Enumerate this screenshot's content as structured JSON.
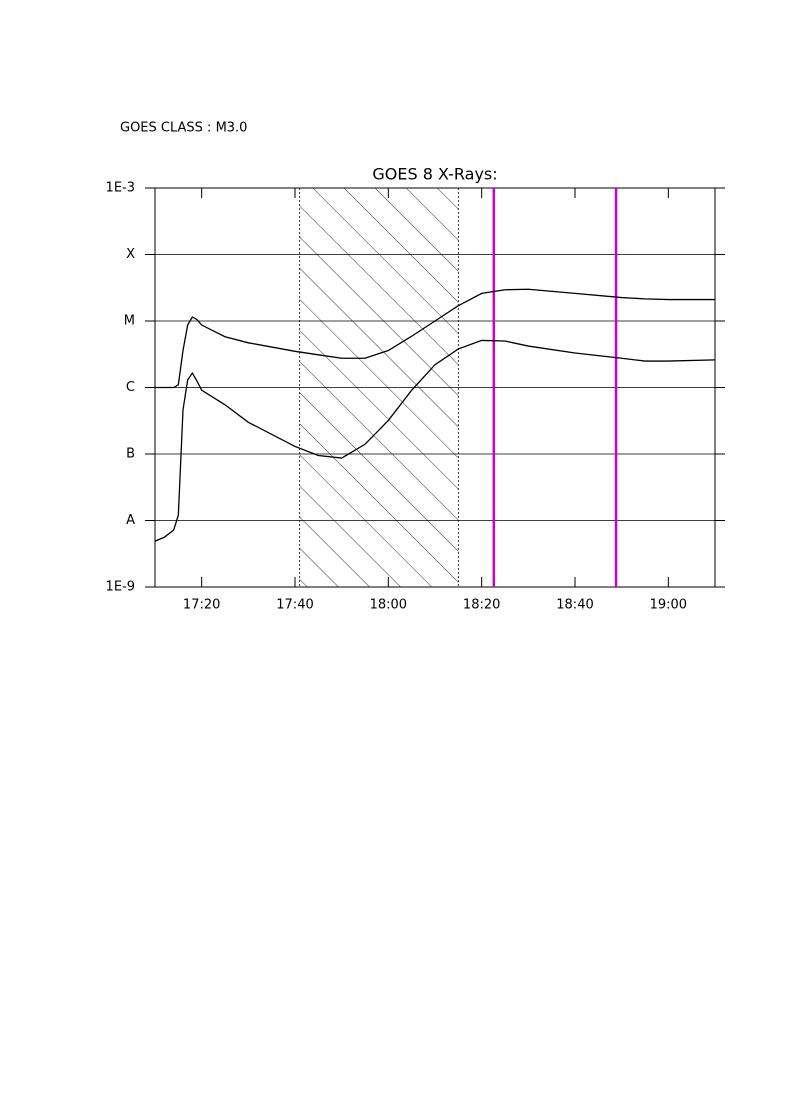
{
  "chart_data": {
    "type": "line",
    "annotation": "GOES CLASS : M3.0",
    "title": "GOES 8 X-Rays:",
    "log_scale": true,
    "grid": true,
    "xlim": [
      1030,
      1150
    ],
    "xticks": [
      {
        "value": 1040,
        "label": "17:20"
      },
      {
        "value": 1060,
        "label": "17:40"
      },
      {
        "value": 1080,
        "label": "18:00"
      },
      {
        "value": 1100,
        "label": "18:20"
      },
      {
        "value": 1120,
        "label": "18:40"
      },
      {
        "value": 1140,
        "label": "19:00"
      }
    ],
    "ylim": [
      1e-09,
      0.001
    ],
    "yticks": [
      {
        "value": 1e-09,
        "label": "1E-9"
      },
      {
        "value": 1e-08,
        "label": "A"
      },
      {
        "value": 1e-07,
        "label": "B"
      },
      {
        "value": 1e-06,
        "label": "C"
      },
      {
        "value": 1e-05,
        "label": "M"
      },
      {
        "value": 0.0001,
        "label": "X"
      },
      {
        "value": 0.001,
        "label": "1E-3"
      }
    ],
    "x": [
      1030,
      1032,
      1034,
      1035,
      1036,
      1037,
      1038,
      1039,
      1040,
      1045,
      1050,
      1060,
      1065,
      1070,
      1075,
      1080,
      1085,
      1090,
      1095,
      1100,
      1105,
      1110,
      1120,
      1130,
      1135,
      1140,
      1150
    ],
    "series": [
      {
        "color": "#000000",
        "values": [
          1e-06,
          1e-06,
          1e-06,
          1.1e-06,
          3.6e-06,
          8.7e-06,
          1.15e-05,
          1.05e-05,
          8.7e-06,
          5.8e-06,
          4.7e-06,
          3.5e-06,
          3.1e-06,
          2.75e-06,
          2.75e-06,
          3.6e-06,
          5.9e-06,
          1e-05,
          1.7e-05,
          2.6e-05,
          2.95e-05,
          3e-05,
          2.6e-05,
          2.25e-05,
          2.15e-05,
          2.1e-05,
          2.1e-05
        ]
      },
      {
        "color": "#000000",
        "values": [
          4.9e-09,
          5.6e-09,
          7.2e-09,
          1.2e-08,
          4.6e-07,
          1.3e-06,
          1.65e-06,
          1.25e-06,
          9.1e-07,
          5.5e-07,
          3e-07,
          1.3e-07,
          9.5e-08,
          8.7e-08,
          1.4e-07,
          3.2e-07,
          9.1e-07,
          2.2e-06,
          3.8e-06,
          5.1e-06,
          5e-06,
          4.2e-06,
          3.3e-06,
          2.75e-06,
          2.5e-06,
          2.5e-06,
          2.6e-06
        ]
      }
    ],
    "shaded_region": [
      1061,
      1095
    ],
    "markers": {
      "color": "#cc00cc",
      "x": [
        1102.6,
        1128.8
      ]
    }
  }
}
